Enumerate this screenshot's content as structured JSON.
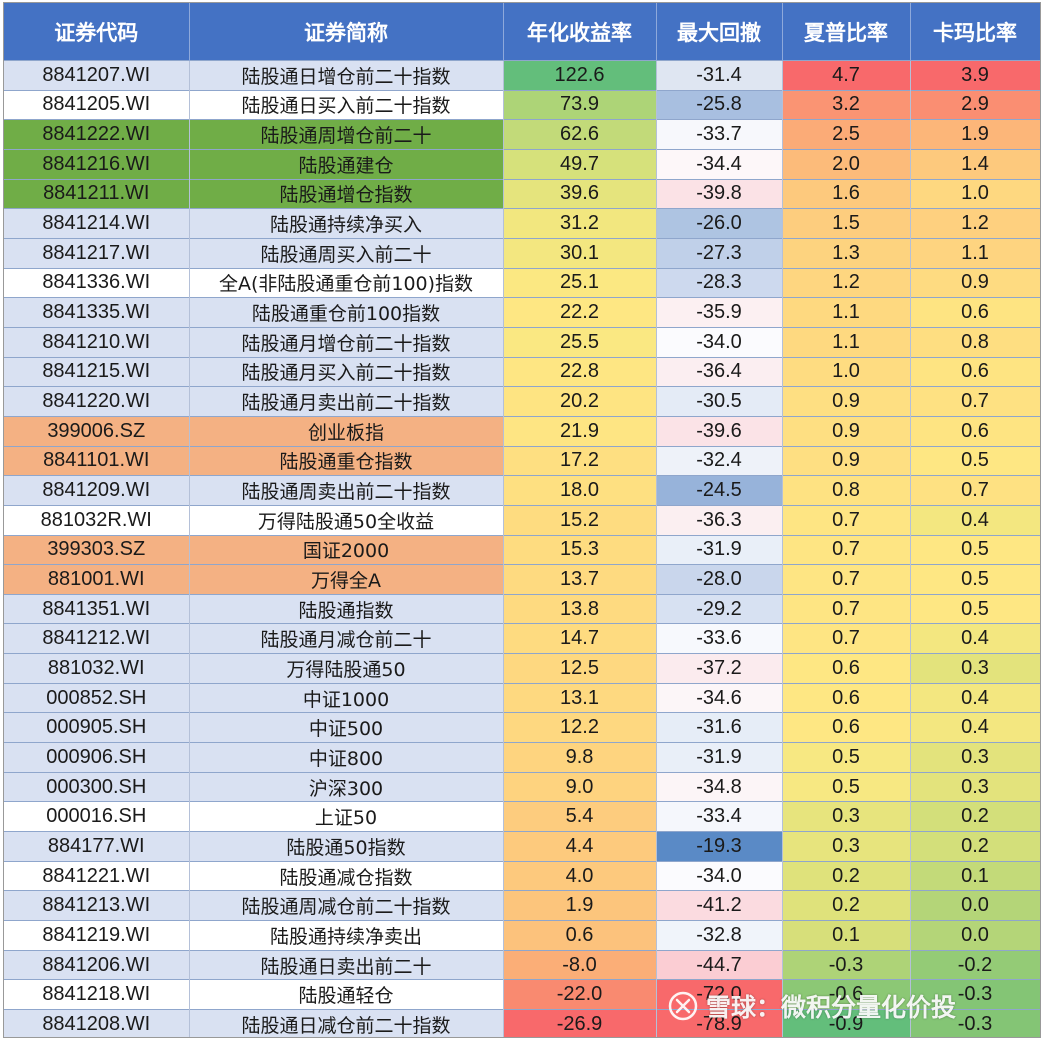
{
  "headers": [
    "证券代码",
    "证券简称",
    "年化收益率",
    "最大回撤",
    "夏普比率",
    "卡玛比率"
  ],
  "rows": [
    {
      "code": "8841207.WI",
      "name": "陆股通日增仓前二十指数",
      "ret": "122.6",
      "dd": "-31.4",
      "sharpe": "4.7",
      "calmar": "3.9",
      "rowbg": "#d9e1f2",
      "c_ret": "#63be7b",
      "c_dd": "#dfe6f2",
      "c_sh": "#f8696b",
      "c_ca": "#f8696b"
    },
    {
      "code": "8841205.WI",
      "name": "陆股通日买入前二十指数",
      "ret": "73.9",
      "dd": "-25.8",
      "sharpe": "3.2",
      "calmar": "2.9",
      "rowbg": "#ffffff",
      "c_ret": "#add477",
      "c_dd": "#a8bfe0",
      "c_sh": "#fa9473",
      "c_ca": "#fa8e72"
    },
    {
      "code": "8841222.WI",
      "name": "陆股通周增仓前二十",
      "ret": "62.6",
      "dd": "-33.7",
      "sharpe": "2.5",
      "calmar": "1.9",
      "rowbg": "#70ad47",
      "c_ret": "#c2da79",
      "c_dd": "#f7f8fc",
      "c_sh": "#fbab77",
      "c_ca": "#fcb679"
    },
    {
      "code": "8841216.WI",
      "name": "陆股通建仓",
      "ret": "49.7",
      "dd": "-34.4",
      "sharpe": "2.0",
      "calmar": "1.4",
      "rowbg": "#70ad47",
      "c_ret": "#d6e17b",
      "c_dd": "#fdf7f9",
      "c_sh": "#fcbb7a",
      "c_ca": "#fdc97d"
    },
    {
      "code": "8841211.WI",
      "name": "陆股通增仓指数",
      "ret": "39.6",
      "dd": "-39.8",
      "sharpe": "1.6",
      "calmar": "1.0",
      "rowbg": "#70ad47",
      "c_ret": "#e5e47d",
      "c_dd": "#fbe2e6",
      "c_sh": "#fdc97d",
      "c_ca": "#fed880"
    },
    {
      "code": "8841214.WI",
      "name": "陆股通持续净买入",
      "ret": "31.2",
      "dd": "-26.0",
      "sharpe": "1.5",
      "calmar": "1.2",
      "rowbg": "#d9e1f2",
      "c_ret": "#f2e77f",
      "c_dd": "#aec4e2",
      "c_sh": "#fdcd7e",
      "c_ca": "#fed07f"
    },
    {
      "code": "8841217.WI",
      "name": "陆股通周买入前二十",
      "ret": "30.1",
      "dd": "-27.3",
      "sharpe": "1.3",
      "calmar": "1.1",
      "rowbg": "#d9e1f2",
      "c_ret": "#f3e780",
      "c_dd": "#c0d0e9",
      "c_sh": "#fdd37f",
      "c_ca": "#fed480"
    },
    {
      "code": "8841336.WI",
      "name": "全A(非陆股通重仓前100)指数",
      "ret": "25.1",
      "dd": "-28.3",
      "sharpe": "1.2",
      "calmar": "0.9",
      "rowbg": "#ffffff",
      "c_ret": "#fbe882",
      "c_dd": "#cdd9ee",
      "c_sh": "#fed680",
      "c_ca": "#fedb81"
    },
    {
      "code": "8841335.WI",
      "name": "陆股通重仓前100指数",
      "ret": "22.2",
      "dd": "-35.9",
      "sharpe": "1.1",
      "calmar": "0.6",
      "rowbg": "#d9e1f2",
      "c_ret": "#fee783",
      "c_dd": "#fcf0f2",
      "c_sh": "#fed980",
      "c_ca": "#fee482"
    },
    {
      "code": "8841210.WI",
      "name": "陆股通月增仓前二十指数",
      "ret": "25.5",
      "dd": "-34.0",
      "sharpe": "1.1",
      "calmar": "0.8",
      "rowbg": "#d9e1f2",
      "c_ret": "#fae882",
      "c_dd": "#fbfbfe",
      "c_sh": "#fed980",
      "c_ca": "#fede81"
    },
    {
      "code": "8841215.WI",
      "name": "陆股通月买入前二十指数",
      "ret": "22.8",
      "dd": "-36.4",
      "sharpe": "1.0",
      "calmar": "0.6",
      "rowbg": "#d9e1f2",
      "c_ret": "#fee683",
      "c_dd": "#fbeef1",
      "c_sh": "#fedc81",
      "c_ca": "#fee482"
    },
    {
      "code": "8841220.WI",
      "name": "陆股通月卖出前二十指数",
      "ret": "20.2",
      "dd": "-30.5",
      "sharpe": "0.9",
      "calmar": "0.7",
      "rowbg": "#d9e1f2",
      "c_ret": "#fee482",
      "c_dd": "#e4ebf6",
      "c_sh": "#fedf82",
      "c_ca": "#fee182"
    },
    {
      "code": "399006.SZ",
      "name": "创业板指",
      "ret": "21.9",
      "dd": "-39.6",
      "sharpe": "0.9",
      "calmar": "0.6",
      "rowbg": "#f4b183",
      "c_ret": "#fee583",
      "c_dd": "#fbe3e7",
      "c_sh": "#fedf82",
      "c_ca": "#fee482"
    },
    {
      "code": "8841101.WI",
      "name": "陆股通重仓指数",
      "ret": "17.2",
      "dd": "-32.4",
      "sharpe": "0.9",
      "calmar": "0.5",
      "rowbg": "#f4b183",
      "c_ret": "#fedf81",
      "c_dd": "#eef2f9",
      "c_sh": "#fedf82",
      "c_ca": "#fee783"
    },
    {
      "code": "8841209.WI",
      "name": "陆股通周卖出前二十指数",
      "ret": "18.0",
      "dd": "-24.5",
      "sharpe": "0.8",
      "calmar": "0.7",
      "rowbg": "#d9e1f2",
      "c_ret": "#fee081",
      "c_dd": "#97b3da",
      "c_sh": "#fee282",
      "c_ca": "#fee182"
    },
    {
      "code": "881032R.WI",
      "name": "万得陆股通50全收益",
      "ret": "15.2",
      "dd": "-36.3",
      "sharpe": "0.7",
      "calmar": "0.4",
      "rowbg": "#ffffff",
      "c_ret": "#fedc80",
      "c_dd": "#fbeff1",
      "c_sh": "#fee583",
      "c_ca": "#f3e780"
    },
    {
      "code": "399303.SZ",
      "name": "国证2000",
      "ret": "15.3",
      "dd": "-31.9",
      "sharpe": "0.7",
      "calmar": "0.5",
      "rowbg": "#f4b183",
      "c_ret": "#fedc80",
      "c_dd": "#e9eff8",
      "c_sh": "#fee583",
      "c_ca": "#fee783"
    },
    {
      "code": "881001.WI",
      "name": "万得全A",
      "ret": "13.7",
      "dd": "-28.0",
      "sharpe": "0.7",
      "calmar": "0.5",
      "rowbg": "#f4b183",
      "c_ret": "#feda80",
      "c_dd": "#c9d6ec",
      "c_sh": "#fee583",
      "c_ca": "#fee783"
    },
    {
      "code": "8841351.WI",
      "name": "陆股通指数",
      "ret": "13.8",
      "dd": "-29.2",
      "sharpe": "0.7",
      "calmar": "0.5",
      "rowbg": "#d9e1f2",
      "c_ret": "#feda80",
      "c_dd": "#d7e1f2",
      "c_sh": "#fee583",
      "c_ca": "#fee783"
    },
    {
      "code": "8841212.WI",
      "name": "陆股通月减仓前二十",
      "ret": "14.7",
      "dd": "-33.6",
      "sharpe": "0.7",
      "calmar": "0.4",
      "rowbg": "#d9e1f2",
      "c_ret": "#fedb80",
      "c_dd": "#f7f9fd",
      "c_sh": "#fee583",
      "c_ca": "#f3e780"
    },
    {
      "code": "881032.WI",
      "name": "万得陆股通50",
      "ret": "12.5",
      "dd": "-37.2",
      "sharpe": "0.6",
      "calmar": "0.3",
      "rowbg": "#d9e1f2",
      "c_ret": "#fed880",
      "c_dd": "#fbebee",
      "c_sh": "#fee783",
      "c_ca": "#e3e37c"
    },
    {
      "code": "000852.SH",
      "name": "中证1000",
      "ret": "13.1",
      "dd": "-34.6",
      "sharpe": "0.6",
      "calmar": "0.4",
      "rowbg": "#d9e1f2",
      "c_ret": "#fed980",
      "c_dd": "#fcf6f8",
      "c_sh": "#fee783",
      "c_ca": "#f3e780"
    },
    {
      "code": "000905.SH",
      "name": "中证500",
      "ret": "12.2",
      "dd": "-31.6",
      "sharpe": "0.6",
      "calmar": "0.4",
      "rowbg": "#d9e1f2",
      "c_ret": "#fed880",
      "c_dd": "#e6edf7",
      "c_sh": "#fee783",
      "c_ca": "#f3e780"
    },
    {
      "code": "000906.SH",
      "name": "中证800",
      "ret": "9.8",
      "dd": "-31.9",
      "sharpe": "0.5",
      "calmar": "0.3",
      "rowbg": "#d9e1f2",
      "c_ret": "#fed47f",
      "c_dd": "#e9eff8",
      "c_sh": "#f7e882",
      "c_ca": "#e3e37c"
    },
    {
      "code": "000300.SH",
      "name": "沪深300",
      "ret": "9.0",
      "dd": "-34.8",
      "sharpe": "0.5",
      "calmar": "0.3",
      "rowbg": "#d9e1f2",
      "c_ret": "#fed37f",
      "c_dd": "#fcf5f7",
      "c_sh": "#f7e882",
      "c_ca": "#e3e37c"
    },
    {
      "code": "000016.SH",
      "name": "上证50",
      "ret": "5.4",
      "dd": "-33.4",
      "sharpe": "0.3",
      "calmar": "0.2",
      "rowbg": "#ffffff",
      "c_ret": "#fdcc7e",
      "c_dd": "#f5f7fc",
      "c_sh": "#e7e47d",
      "c_ca": "#d3df7a"
    },
    {
      "code": "884177.WI",
      "name": "陆股通50指数",
      "ret": "4.4",
      "dd": "-19.3",
      "sharpe": "0.3",
      "calmar": "0.2",
      "rowbg": "#d9e1f2",
      "c_ret": "#fdca7d",
      "c_dd": "#5a8ac6",
      "c_sh": "#e7e47d",
      "c_ca": "#d3df7a"
    },
    {
      "code": "8841221.WI",
      "name": "陆股通减仓指数",
      "ret": "4.0",
      "dd": "-34.0",
      "sharpe": "0.2",
      "calmar": "0.1",
      "rowbg": "#ffffff",
      "c_ret": "#fdc97d",
      "c_dd": "#fbfbfe",
      "c_sh": "#dfe27b",
      "c_ca": "#c3da79"
    },
    {
      "code": "8841213.WI",
      "name": "陆股通周减仓前二十指数",
      "ret": "1.9",
      "dd": "-41.2",
      "sharpe": "0.2",
      "calmar": "0.0",
      "rowbg": "#d9e1f2",
      "c_ret": "#fcc57c",
      "c_dd": "#fbdbe0",
      "c_sh": "#dfe27b",
      "c_ca": "#b4d578"
    },
    {
      "code": "8841219.WI",
      "name": "陆股通持续净卖出",
      "ret": "0.6",
      "dd": "-32.8",
      "sharpe": "0.1",
      "calmar": "0.0",
      "rowbg": "#ffffff",
      "c_ret": "#fcc27c",
      "c_dd": "#f0f4fa",
      "c_sh": "#d7df7a",
      "c_ca": "#b4d578"
    },
    {
      "code": "8841206.WI",
      "name": "陆股通日卖出前二十",
      "ret": "-8.0",
      "dd": "-44.7",
      "sharpe": "-0.3",
      "calmar": "-0.2",
      "rowbg": "#d9e1f2",
      "c_ret": "#fbae77",
      "c_dd": "#fbcdd3",
      "c_sh": "#aed377",
      "c_ca": "#94cb76"
    },
    {
      "code": "8841218.WI",
      "name": "陆股通轻仓",
      "ret": "-22.0",
      "dd": "-72.0",
      "sharpe": "-0.6",
      "calmar": "-0.3",
      "rowbg": "#ffffff",
      "c_ret": "#f98a70",
      "c_dd": "#f8696b",
      "c_sh": "#8cc875",
      "c_ca": "#84c575"
    },
    {
      "code": "8841208.WI",
      "name": "陆股通日减仓前二十指数",
      "ret": "-26.9",
      "dd": "-78.9",
      "sharpe": "-0.9",
      "calmar": "-0.3",
      "rowbg": "#d9e1f2",
      "c_ret": "#f8696b",
      "c_dd": "#f8696b",
      "c_sh": "#63be7b",
      "c_ca": "#84c575"
    }
  ],
  "watermark": "雪球：微积分量化价投"
}
